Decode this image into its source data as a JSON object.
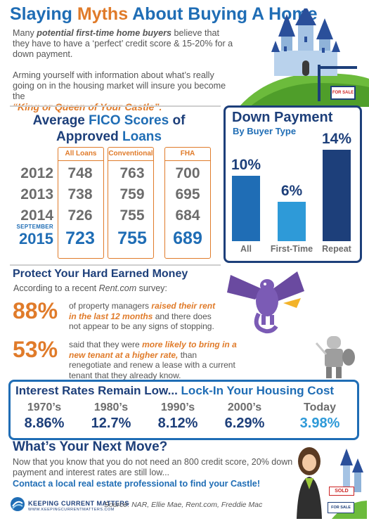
{
  "header": {
    "title_pre": "Slaying ",
    "title_mid": "Myths",
    "title_post": " About Buying A Home",
    "intro1_a": "Many ",
    "intro1_b": "potential first-time home buyers",
    "intro1_c": " believe that they have to have a ‘perfect’ credit score & 15-20% for a down payment.",
    "intro2": "Arming yourself with information about what’s really going on in the housing market will insure you become the",
    "quote": "“King or Queen of Your Castle”."
  },
  "fico": {
    "title_a": "Average ",
    "title_b": "FICO Scores",
    "title_c": " of",
    "title_d": "Approved ",
    "title_e": "Loans",
    "columns": [
      "All Loans",
      "Conventional",
      "FHA"
    ],
    "years": [
      "2012",
      "2013",
      "2014",
      "2015"
    ],
    "latest_month": "SEPTEMBER",
    "rows": [
      [
        "748",
        "763",
        "700"
      ],
      [
        "738",
        "759",
        "695"
      ],
      [
        "726",
        "755",
        "684"
      ],
      [
        "723",
        "755",
        "689"
      ]
    ]
  },
  "down_payment": {
    "title": "Down Payment",
    "subtitle": "By Buyer Type",
    "bars": [
      {
        "label": "All",
        "value_text": "10%",
        "value": 10,
        "color": "#1f6db5"
      },
      {
        "label": "First-Time",
        "value_text": "6%",
        "value": 6,
        "color": "#2e9ad8"
      },
      {
        "label": "Repeat",
        "value_text": "14%",
        "value": 14,
        "color": "#1d3f7a"
      }
    ]
  },
  "protect": {
    "title": "Protect Your Hard Earned Money",
    "sub_a": "According to a recent ",
    "sub_b": "Rent.com",
    "sub_c": " survey:",
    "stat1_pct": "88%",
    "stat1_a": "of property managers ",
    "stat1_hl": "raised their rent in the last 12 months",
    "stat1_b": " and there does not appear to be any signs of stopping.",
    "stat2_pct": "53%",
    "stat2_a": "said that they were ",
    "stat2_hl": "more likely to bring in a new tenant at a higher rate,",
    "stat2_b": " than renegotiate and renew a lease with a current tenant that they already know."
  },
  "interest": {
    "title_a": "Interest Rates Remain Low... ",
    "title_b": "Lock-In Your Housing Cost",
    "decades": [
      "1970’s",
      "1980’s",
      "1990’s",
      "2000’s",
      "Today"
    ],
    "rates": [
      "8.86%",
      "12.7%",
      "8.12%",
      "6.29%",
      "3.98%"
    ]
  },
  "next_move": {
    "title": "What’s Your Next Move?",
    "text": "Now that you know that you do not need an 800 credit score, 20% down payment and interest rates are still low...",
    "cta": "Contact a local real estate professional to find your Castle!",
    "sold_sign": "SOLD",
    "for_sale_sign": "FOR SALE"
  },
  "header_sign": "FOR SALE",
  "footer": {
    "brand": "KEEPING CURRENT MATTERS",
    "url": "WWW.KEEPINGCURRENTMATTERS.COM",
    "source": "Source: NAR, Ellie Mae, Rent.com, Freddie Mac"
  }
}
